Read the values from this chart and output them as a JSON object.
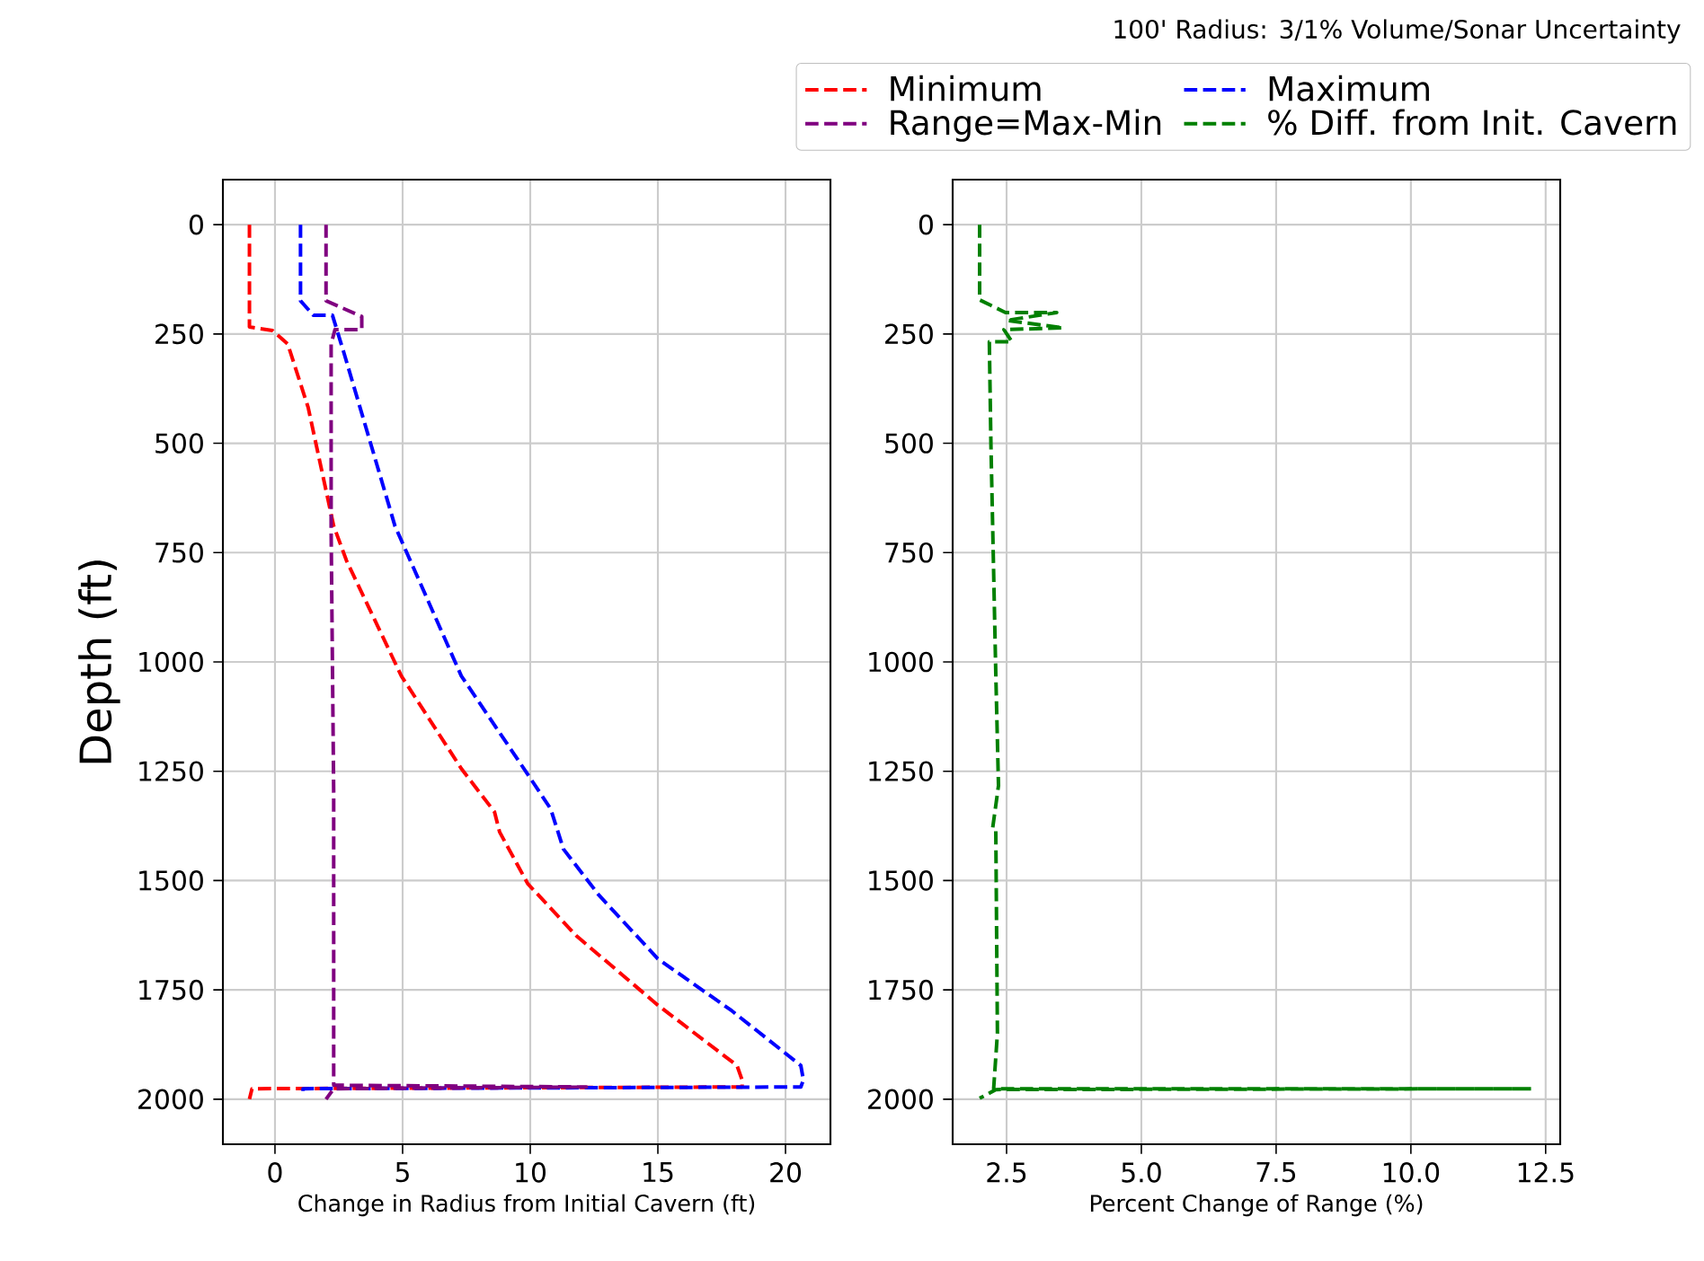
{
  "chart_data": [
    {
      "type": "line",
      "xlabel": "Change in Radius from Initial Cavern (ft)",
      "ylabel": "Depth (ft)",
      "xlim": [
        -2.04,
        21.76
      ],
      "ylim": [
        2103,
        -103
      ],
      "xticks": [
        0,
        5,
        10,
        15,
        20
      ],
      "yticks": [
        0,
        250,
        500,
        750,
        1000,
        1250,
        1500,
        1750,
        2000
      ],
      "grid": true,
      "line_style": "dashed",
      "series": [
        {
          "name": "Minimum",
          "color": "#ff0000",
          "x": [
            -1.0,
            -1.0,
            -0.1,
            0.5,
            1.3,
            2.3,
            2.8,
            4.95,
            7.3,
            8.6,
            8.8,
            9.9,
            11.8,
            15.0,
            18.1,
            18.3,
            18.3,
            -0.9,
            -1.0
          ],
          "values": [
            0,
            234,
            242,
            273,
            418,
            689,
            768,
            1032,
            1244,
            1343,
            1389,
            1507,
            1626,
            1785,
            1923,
            1956,
            1972,
            1976,
            2000
          ]
        },
        {
          "name": "Maximum",
          "color": "#0000ff",
          "x": [
            1.0,
            1.0,
            1.5,
            2.25,
            2.7,
            4.7,
            7.3,
            9.9,
            10.8,
            11.3,
            12.7,
            15.0,
            17.9,
            20.6,
            20.7,
            20.6,
            1.1,
            1.1
          ],
          "values": [
            0,
            174,
            207,
            207,
            293,
            689,
            1032,
            1257,
            1336,
            1428,
            1534,
            1679,
            1798,
            1923,
            1956,
            1972,
            1976,
            1990
          ]
        },
        {
          "name": "Range=Max-Min",
          "color": "#800080",
          "x": [
            2.0,
            2.0,
            2.5,
            3.4,
            3.4,
            2.35,
            2.2,
            2.2,
            2.3,
            2.3,
            12.2,
            2.3,
            2.0
          ],
          "values": [
            0,
            174,
            187,
            210,
            240,
            240,
            273,
            700,
            1300,
            1968,
            1972,
            1976,
            2000
          ]
        }
      ]
    },
    {
      "type": "line",
      "xlabel": "Percent Change of Range (%)",
      "xlim": [
        1.5,
        12.77
      ],
      "ylim": [
        2103,
        -103
      ],
      "xticks": [
        2.5,
        {
          "value": 5,
          "label": "5.0"
        },
        7.5,
        {
          "value": 10,
          "label": "10.0"
        },
        12.5
      ],
      "yticks": [
        0,
        250,
        500,
        750,
        1000,
        1250,
        1500,
        1750,
        2000
      ],
      "grid": true,
      "line_style": "dashed",
      "legend": "top right",
      "legend_title": "100' Radius: 3/1% Volume/Sonar Uncertainty",
      "series": [
        {
          "name": "% Diff. from Init. Cavern",
          "color": "#008000",
          "x": [
            2.0,
            2.0,
            2.48,
            3.43,
            2.5,
            3.55,
            2.45,
            2.6,
            2.18,
            2.21,
            2.3,
            2.35,
            2.24,
            2.3,
            2.33,
            2.26,
            12.23,
            2.3,
            2.0
          ],
          "values": [
            0,
            172,
            201,
            201,
            219,
            236,
            240,
            268,
            268,
            505,
            1028,
            1283,
            1382,
            1386,
            1849,
            1976,
            1976,
            1978,
            1998
          ]
        }
      ]
    }
  ]
}
